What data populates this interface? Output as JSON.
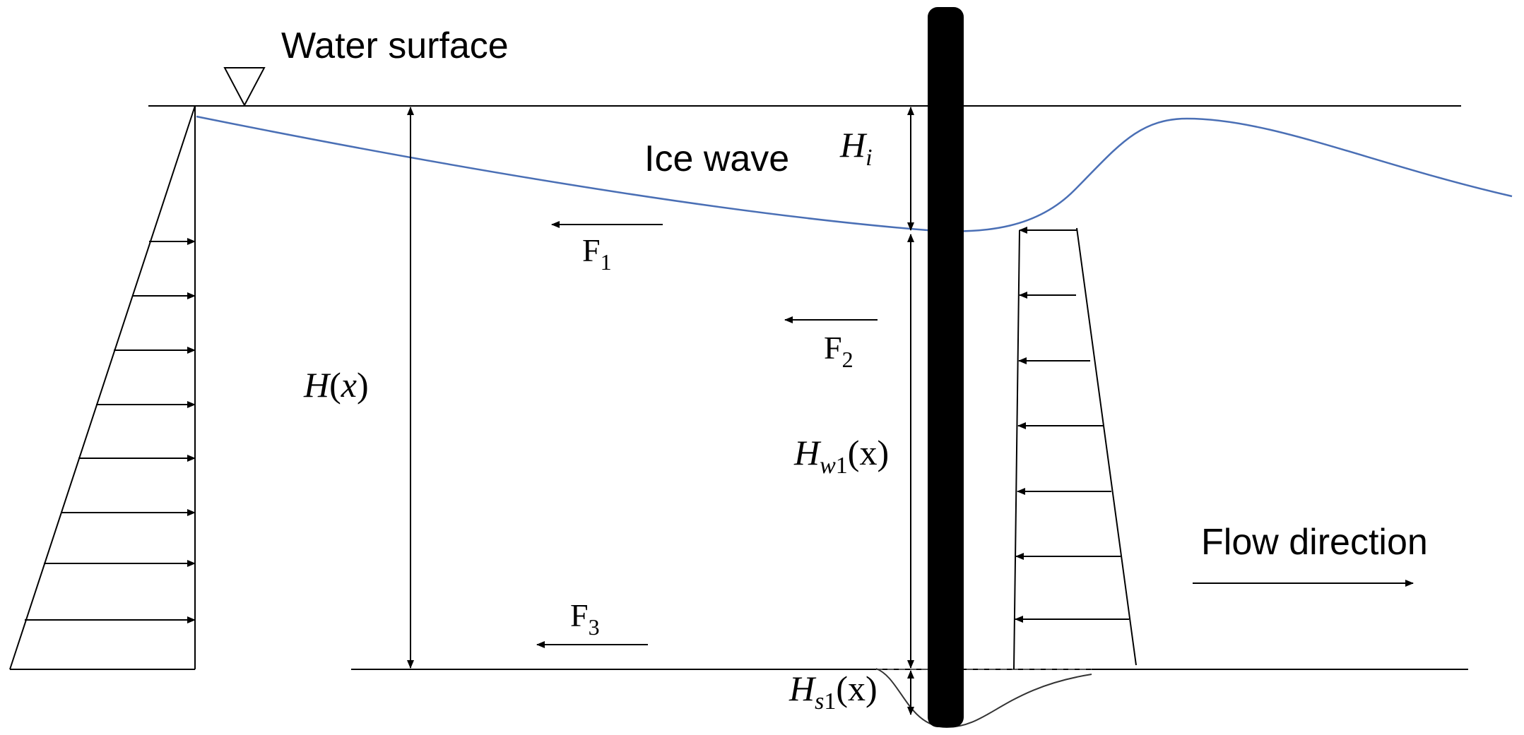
{
  "labels": {
    "water_surface": "Water surface",
    "ice_wave": "Ice wave",
    "flow_direction": "Flow direction",
    "f1": {
      "main": "F",
      "sub": "1"
    },
    "f2": {
      "main": "F",
      "sub": "2"
    },
    "f3": {
      "main": "F",
      "sub": "3"
    },
    "h_x": {
      "main": "H",
      "paren_open": "(",
      "var": "x",
      "paren_close": ")"
    },
    "h_i": {
      "main": "H",
      "sub": "i"
    },
    "h_w1": {
      "main": "H",
      "sub_italic": "w",
      "sub": "1",
      "suffix": "(x)"
    },
    "h_s1": {
      "main": "H",
      "sub_italic": "s",
      "sub": "1",
      "suffix": "(x)"
    }
  },
  "colors": {
    "line": "#000000",
    "ice_wave": "#4a6fb5",
    "pile": "#000000",
    "background": "#ffffff"
  }
}
